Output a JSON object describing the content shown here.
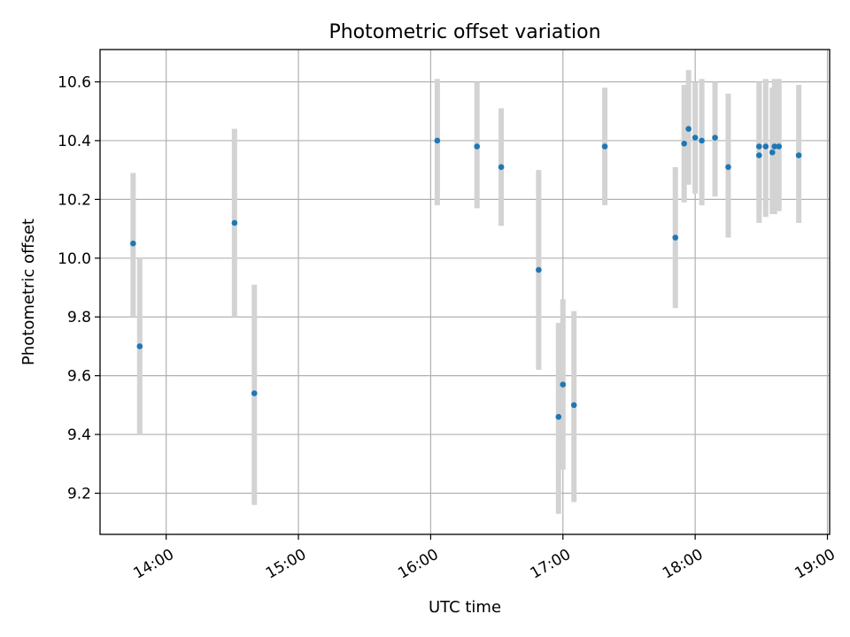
{
  "chart_data": {
    "type": "scatter",
    "title": "Photometric offset variation",
    "xlabel": "UTC time",
    "ylabel": "Photometric offset",
    "xlim": [
      "13:30",
      "19:01"
    ],
    "ylim": [
      9.06,
      10.71
    ],
    "x_ticks": [
      "14:00",
      "15:00",
      "16:00",
      "17:00",
      "18:00",
      "19:00"
    ],
    "y_ticks": [
      9.2,
      9.4,
      9.6,
      9.8,
      10.0,
      10.2,
      10.4,
      10.6
    ],
    "y_tick_labels": [
      "9.2",
      "9.4",
      "9.6",
      "9.8",
      "10.0",
      "10.2",
      "10.4",
      "10.6"
    ],
    "grid": true,
    "colors": {
      "point": "#1f77b4",
      "errorbar": "#d3d3d3"
    },
    "series": [
      {
        "points": [
          {
            "x": "13:45",
            "y": 10.05,
            "lo": 9.8,
            "hi": 10.29
          },
          {
            "x": "13:48",
            "y": 9.7,
            "lo": 9.4,
            "hi": 10.0
          },
          {
            "x": "14:31",
            "y": 10.12,
            "lo": 9.8,
            "hi": 10.44
          },
          {
            "x": "14:40",
            "y": 9.54,
            "lo": 9.16,
            "hi": 9.91
          },
          {
            "x": "16:03",
            "y": 10.4,
            "lo": 10.18,
            "hi": 10.61
          },
          {
            "x": "16:21",
            "y": 10.38,
            "lo": 10.17,
            "hi": 10.6
          },
          {
            "x": "16:32",
            "y": 10.31,
            "lo": 10.11,
            "hi": 10.51
          },
          {
            "x": "16:49",
            "y": 9.96,
            "lo": 9.62,
            "hi": 10.3
          },
          {
            "x": "16:58",
            "y": 9.46,
            "lo": 9.13,
            "hi": 9.78
          },
          {
            "x": "17:00",
            "y": 9.57,
            "lo": 9.28,
            "hi": 9.86
          },
          {
            "x": "17:05",
            "y": 9.5,
            "lo": 9.17,
            "hi": 9.82
          },
          {
            "x": "17:19",
            "y": 10.38,
            "lo": 10.18,
            "hi": 10.58
          },
          {
            "x": "17:51",
            "y": 10.07,
            "lo": 9.83,
            "hi": 10.31
          },
          {
            "x": "17:55",
            "y": 10.39,
            "lo": 10.19,
            "hi": 10.59
          },
          {
            "x": "17:57",
            "y": 10.44,
            "lo": 10.25,
            "hi": 10.64
          },
          {
            "x": "18:00",
            "y": 10.41,
            "lo": 10.22,
            "hi": 10.6
          },
          {
            "x": "18:03",
            "y": 10.4,
            "lo": 10.18,
            "hi": 10.61
          },
          {
            "x": "18:09",
            "y": 10.41,
            "lo": 10.21,
            "hi": 10.6
          },
          {
            "x": "18:15",
            "y": 10.31,
            "lo": 10.07,
            "hi": 10.56
          },
          {
            "x": "18:29",
            "y": 10.38,
            "lo": 10.16,
            "hi": 10.6
          },
          {
            "x": "18:29",
            "y": 10.35,
            "lo": 10.12,
            "hi": 10.59
          },
          {
            "x": "18:32",
            "y": 10.38,
            "lo": 10.14,
            "hi": 10.61
          },
          {
            "x": "18:35",
            "y": 10.36,
            "lo": 10.15,
            "hi": 10.58
          },
          {
            "x": "18:36",
            "y": 10.38,
            "lo": 10.15,
            "hi": 10.61
          },
          {
            "x": "18:38",
            "y": 10.38,
            "lo": 10.16,
            "hi": 10.61
          },
          {
            "x": "18:47",
            "y": 10.35,
            "lo": 10.12,
            "hi": 10.59
          }
        ]
      }
    ]
  }
}
